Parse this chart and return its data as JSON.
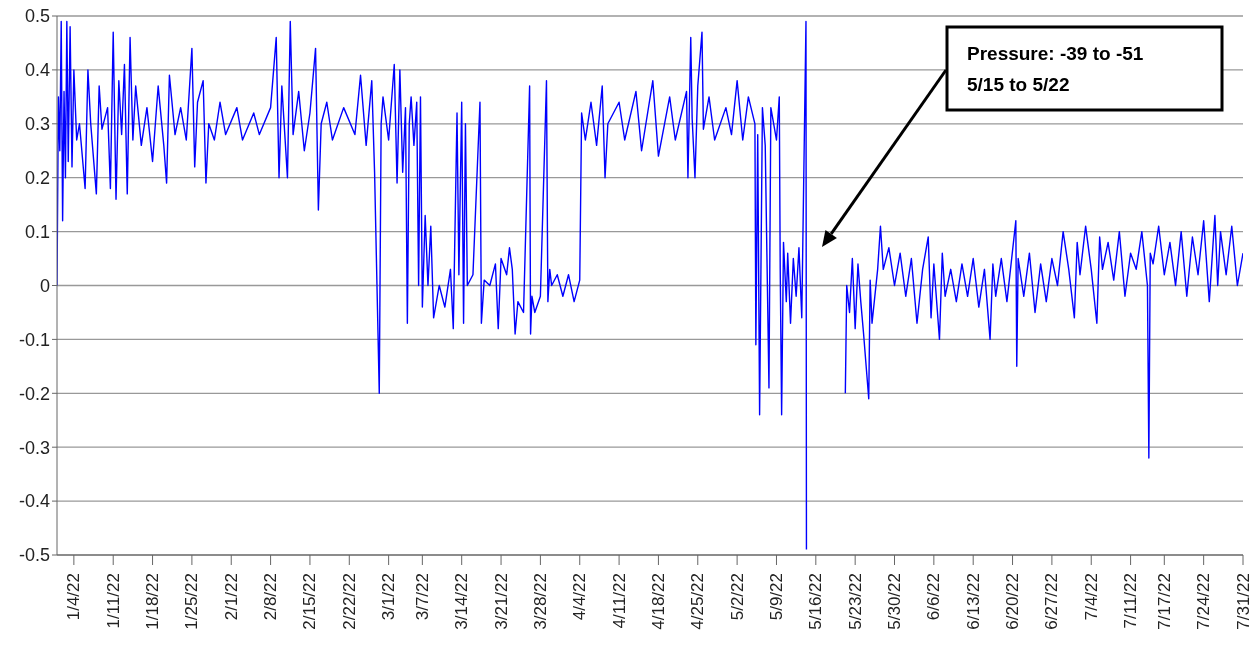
{
  "chart_data": {
    "type": "line",
    "color": "#0000ff",
    "x": [
      "--01-01T00:00",
      "--01-01T06:00",
      "--01-01T12:00",
      "--01-01T18:00",
      "--01-02T00:00",
      "--01-02T06:00",
      "--01-02T12:00",
      "--01-02T18:00",
      "--01-03T00:00",
      "--01-03T08:00",
      "--01-03T16:00",
      "--01-04T00:00",
      "--01-04T12:00",
      "--01-05",
      "--01-06",
      "--01-06T12:00",
      "--01-07",
      "--01-08",
      "--01-08T12:00",
      "--01-09",
      "--01-10",
      "--01-10T12:00",
      "--01-11",
      "--01-11T12:00",
      "--01-12",
      "--01-12T12:00",
      "--01-13",
      "--01-13T12:00",
      "--01-14",
      "--01-14T12:00",
      "--01-15",
      "--01-16",
      "--01-17",
      "--01-18",
      "--01-19",
      "--01-20",
      "--01-20T12:00",
      "--01-21",
      "--01-22",
      "--01-23",
      "--01-24",
      "--01-25",
      "--01-25T12:00",
      "--01-26",
      "--01-27",
      "--01-27T12:00",
      "--01-28",
      "--01-29",
      "--01-30",
      "--01-31",
      "--02-02",
      "--02-03",
      "--02-05",
      "--02-06",
      "--02-08",
      "--02-09",
      "--02-09T12:00",
      "--02-10",
      "--02-11",
      "--02-11T12:00",
      "--02-12",
      "--02-13",
      "--02-14",
      "--02-15",
      "--02-16",
      "--02-16T12:00",
      "--02-17",
      "--02-18",
      "--02-19",
      "--02-21",
      "--02-23",
      "--02-24",
      "--02-25",
      "--02-26",
      "--02-26T12:00",
      "--02-27T08:00",
      "--02-27T16:00",
      "--02-28",
      "--03-01",
      "--03-02",
      "--03-02T12:00",
      "--03-03",
      "--03-03T12:00",
      "--03-04",
      "--03-04T08:00",
      "--03-04T16:00",
      "--03-05",
      "--03-05T12:00",
      "--03-06",
      "--03-06T08:00",
      "--03-06T16:00",
      "--03-07",
      "--03-07T12:00",
      "--03-08",
      "--03-08T12:00",
      "--03-09",
      "--03-10",
      "--03-11",
      "--03-12",
      "--03-12T12:00",
      "--03-13T04:00",
      "--03-13T12:00",
      "--03-14",
      "--03-14T08:00",
      "--03-14T16:00",
      "--03-15",
      "--03-16",
      "--03-17T06:00",
      "--03-17T12:00",
      "--03-18",
      "--03-19",
      "--03-20",
      "--03-20T12:00",
      "--03-21",
      "--03-22",
      "--03-22T12:00",
      "--03-23",
      "--03-23T12:00",
      "--03-24",
      "--03-25",
      "--03-26T02:00",
      "--03-26T06:00",
      "--03-26T12:00",
      "--03-27",
      "--03-28",
      "--03-29T02:00",
      "--03-29T08:00",
      "--03-29T16:00",
      "--03-30",
      "--03-31",
      "--04-01",
      "--04-02",
      "--04-03",
      "--04-04",
      "--04-04T08:00",
      "--04-05",
      "--04-06",
      "--04-07",
      "--04-08",
      "--04-08T12:00",
      "--04-09",
      "--04-11",
      "--04-12",
      "--04-14",
      "--04-15",
      "--04-17",
      "--04-18",
      "--04-20",
      "--04-21",
      "--04-23",
      "--04-23T06:00",
      "--04-23T18:00",
      "--04-24",
      "--04-24T12:00",
      "--04-25",
      "--04-25T18:00",
      "--04-26",
      "--04-27",
      "--04-28",
      "--04-30",
      "--05-01",
      "--05-02",
      "--05-03",
      "--05-04",
      "--05-05T04:00",
      "--05-05T08:00",
      "--05-05T16:00",
      "--05-06",
      "--05-06T12:00",
      "--05-07",
      "--05-07T16:00",
      "--05-08",
      "--05-09",
      "--05-09T12:00",
      "--05-09T16:00",
      "--05-09T22:00",
      "--05-10T06:00",
      "--05-10T18:00",
      "--05-11",
      "--05-11T12:00",
      "--05-12",
      "--05-12T12:00",
      "--05-13",
      "--05-13T12:00",
      "--05-14T06:00",
      "--05-14T08:00",
      "--05-18",
      "--05-21T06:00",
      "--05-21T12:00",
      "--05-22",
      "--05-22T12:00",
      "--05-23",
      "--05-23T12:00",
      "--05-24",
      "--05-24T12:00",
      "--05-25T10:00",
      "--05-25T16:00",
      "--05-26",
      "--05-27",
      "--05-27T12:00",
      "--05-28",
      "--05-29",
      "--05-30",
      "--05-31",
      "--06-01",
      "--06-02",
      "--06-03",
      "--06-04",
      "--06-05",
      "--06-05T12:00",
      "--06-06",
      "--06-07",
      "--06-07T12:00",
      "--06-08",
      "--06-09",
      "--06-10",
      "--06-11",
      "--06-12",
      "--06-13",
      "--06-14",
      "--06-15",
      "--06-16",
      "--06-16T12:00",
      "--06-17",
      "--06-18",
      "--06-19",
      "--06-20T14:00",
      "--06-20T18:00",
      "--06-21",
      "--06-22",
      "--06-23",
      "--06-24",
      "--06-25",
      "--06-26",
      "--06-27",
      "--06-28",
      "--06-29",
      "--06-30",
      "--07-01",
      "--07-01T12:00",
      "--07-02",
      "--07-03",
      "--07-04",
      "--07-05",
      "--07-05T12:00",
      "--07-06",
      "--07-07",
      "--07-08",
      "--07-09",
      "--07-10",
      "--07-11",
      "--07-12",
      "--07-13",
      "--07-14",
      "--07-14T06:00",
      "--07-14T12:00",
      "--07-15",
      "--07-16",
      "--07-17",
      "--07-18",
      "--07-19",
      "--07-20",
      "--07-21",
      "--07-22",
      "--07-23",
      "--07-24",
      "--07-25",
      "--07-26",
      "--07-26T12:00",
      "--07-27",
      "--07-28",
      "--07-29",
      "--07-30",
      "--07-31"
    ],
    "values": [
      0,
      0.35,
      0.25,
      0.49,
      0.12,
      0.36,
      0.2,
      0.49,
      0.23,
      0.48,
      0.22,
      0.4,
      0.27,
      0.3,
      0.18,
      0.4,
      0.3,
      0.17,
      0.37,
      0.29,
      0.33,
      0.18,
      0.47,
      0.16,
      0.38,
      0.28,
      0.41,
      0.17,
      0.46,
      0.27,
      0.37,
      0.26,
      0.33,
      0.23,
      0.37,
      0.26,
      0.19,
      0.39,
      0.28,
      0.33,
      0.27,
      0.44,
      0.22,
      0.34,
      0.38,
      0.19,
      0.3,
      0.27,
      0.34,
      0.28,
      0.33,
      0.27,
      0.32,
      0.28,
      0.33,
      0.46,
      0.2,
      0.37,
      0.2,
      0.49,
      0.28,
      0.36,
      0.25,
      0.32,
      0.44,
      0.14,
      0.3,
      0.34,
      0.27,
      0.33,
      0.28,
      0.39,
      0.26,
      0.38,
      0.21,
      -0.2,
      0.3,
      0.35,
      0.27,
      0.41,
      0.19,
      0.4,
      0.21,
      0.33,
      -0.07,
      0.3,
      0.35,
      0.26,
      0.34,
      0,
      0.35,
      -0.04,
      0.13,
      0,
      0.11,
      -0.06,
      0,
      -0.04,
      0.03,
      -0.08,
      0.32,
      0.02,
      0.34,
      -0.07,
      0.3,
      0,
      0.02,
      0.34,
      -0.07,
      0.01,
      0,
      0.04,
      -0.08,
      0.05,
      0.02,
      0.07,
      0.03,
      -0.09,
      -0.03,
      -0.05,
      0.37,
      -0.09,
      -0.02,
      -0.05,
      -0.02,
      0.38,
      -0.03,
      0.03,
      0,
      0.02,
      -0.02,
      0.02,
      -0.03,
      0.01,
      0.32,
      0.27,
      0.34,
      0.26,
      0.37,
      0.2,
      0.3,
      0.34,
      0.27,
      0.36,
      0.25,
      0.38,
      0.24,
      0.35,
      0.27,
      0.36,
      0.2,
      0.46,
      0.31,
      0.2,
      0.37,
      0.47,
      0.29,
      0.35,
      0.27,
      0.33,
      0.28,
      0.38,
      0.27,
      0.35,
      0.3,
      -0.11,
      0.28,
      -0.24,
      0.33,
      0.26,
      -0.19,
      0.33,
      0.27,
      0.35,
      0.03,
      -0.24,
      0.08,
      -0.03,
      0.06,
      -0.07,
      0.05,
      -0.02,
      0.07,
      -0.06,
      0.49,
      -0.49,
      null,
      -0.2,
      0,
      -0.05,
      0.05,
      -0.08,
      0.04,
      -0.03,
      -0.09,
      -0.21,
      0.01,
      -0.07,
      0.03,
      0.11,
      0.03,
      0.07,
      0,
      0.06,
      -0.02,
      0.05,
      -0.07,
      0.03,
      0.09,
      -0.06,
      0.04,
      -0.1,
      0.06,
      -0.02,
      0.03,
      -0.03,
      0.04,
      -0.02,
      0.05,
      -0.04,
      0.03,
      -0.1,
      0.04,
      -0.02,
      0.05,
      -0.03,
      0.12,
      -0.15,
      0.05,
      -0.02,
      0.06,
      -0.05,
      0.04,
      -0.03,
      0.05,
      0,
      0.1,
      0.03,
      -0.06,
      0.08,
      0.02,
      0.11,
      0.03,
      -0.07,
      0.09,
      0.03,
      0.08,
      0.01,
      0.1,
      -0.02,
      0.06,
      0.03,
      0.1,
      0,
      -0.32,
      0.06,
      0.04,
      0.11,
      0.02,
      0.08,
      0,
      0.1,
      -0.02,
      0.09,
      0.02,
      0.12,
      -0.03,
      0.13,
      0,
      0.1,
      0.02,
      0.11,
      0,
      0.06
    ],
    "xlim": [
      "--01-01",
      "--07-31"
    ],
    "xticks": [
      {
        "value": "--01-04",
        "label": "1/4/22"
      },
      {
        "value": "--01-11",
        "label": "1/11/22"
      },
      {
        "value": "--01-18",
        "label": "1/18/22"
      },
      {
        "value": "--01-25",
        "label": "1/25/22"
      },
      {
        "value": "--02-01",
        "label": "2/1/22"
      },
      {
        "value": "--02-08",
        "label": "2/8/22"
      },
      {
        "value": "--02-15",
        "label": "2/15/22"
      },
      {
        "value": "--02-22",
        "label": "2/22/22"
      },
      {
        "value": "--03-01",
        "label": "3/1/22"
      },
      {
        "value": "--03-07",
        "label": "3/7/22"
      },
      {
        "value": "--03-14",
        "label": "3/14/22"
      },
      {
        "value": "--03-21",
        "label": "3/21/22"
      },
      {
        "value": "--03-28",
        "label": "3/28/22"
      },
      {
        "value": "--04-04",
        "label": "4/4/22"
      },
      {
        "value": "--04-11",
        "label": "4/11/22"
      },
      {
        "value": "--04-18",
        "label": "4/18/22"
      },
      {
        "value": "--04-25",
        "label": "4/25/22"
      },
      {
        "value": "--05-02",
        "label": "5/2/22"
      },
      {
        "value": "--05-09",
        "label": "5/9/22"
      },
      {
        "value": "--05-16",
        "label": "5/16/22"
      },
      {
        "value": "--05-23",
        "label": "5/23/22"
      },
      {
        "value": "--05-30",
        "label": "5/30/22"
      },
      {
        "value": "--06-06",
        "label": "6/6/22"
      },
      {
        "value": "--06-13",
        "label": "6/13/22"
      },
      {
        "value": "--06-20",
        "label": "6/20/22"
      },
      {
        "value": "--06-27",
        "label": "6/27/22"
      },
      {
        "value": "--07-04",
        "label": "7/4/22"
      },
      {
        "value": "--07-11",
        "label": "7/11/22"
      },
      {
        "value": "--07-17",
        "label": "7/17/22"
      },
      {
        "value": "--07-24",
        "label": "7/24/22"
      },
      {
        "value": "--07-31",
        "label": "7/31/22"
      }
    ],
    "ylim": [
      -0.5,
      0.5
    ],
    "yticks": [
      -0.5,
      -0.4,
      -0.3,
      -0.2,
      -0.1,
      0,
      0.1,
      0.2,
      0.3,
      0.4,
      0.5
    ],
    "grid": "y",
    "annotations": [
      "Pressure: -39 to -51\n5/15 to 5/22"
    ]
  }
}
